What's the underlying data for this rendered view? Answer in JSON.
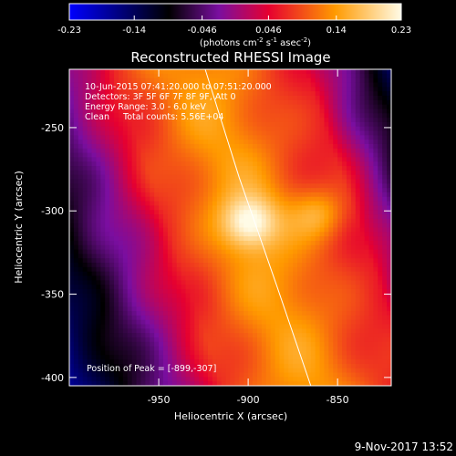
{
  "chart_data": {
    "type": "heatmap",
    "title": "Reconstructed RHESSI Image",
    "xlabel": "Heliocentric X (arcsec)",
    "ylabel": "Heliocentric Y (arcsec)",
    "x_ticks": [
      "-950",
      "-900",
      "-850"
    ],
    "y_ticks": [
      "-250",
      "-300",
      "-350",
      "-400"
    ],
    "xlim": [
      -1000,
      -820
    ],
    "ylim": [
      -405,
      -215
    ],
    "colorbar": {
      "ticks": [
        "-0.23",
        "-0.14",
        "-0.046",
        "0.046",
        "0.14",
        "0.23"
      ],
      "range": [
        -0.23,
        0.23
      ],
      "units_prefix": "(photons cm",
      "units_exp1": "-2",
      "units_mid": " s",
      "units_exp2": "-1",
      "units_mid2": " asec",
      "units_exp3": "-2",
      "units_suffix": ")"
    },
    "annotations": [
      "10-Jun-2015 07:41:20.000 to 07:51:20.000",
      "Detectors: 3F 5F 6F 7F 8F 9F, Att 0",
      "Energy Range: 3.0 - 6.0 keV",
      "Clean     Total counts: 5.56E+04"
    ],
    "peak_label": "Position of Peak = [-899,-307]",
    "peaks": [
      {
        "x": -899,
        "y": -307,
        "value": 0.23
      },
      {
        "x": -860,
        "y": -302,
        "value": 0.19
      }
    ],
    "limb_line": [
      [
        -924,
        -215
      ],
      [
        -905,
        -280
      ],
      [
        -884,
        -345
      ],
      [
        -865,
        -405
      ]
    ]
  },
  "footer": {
    "date": "9-Nov-2017 13:52"
  }
}
